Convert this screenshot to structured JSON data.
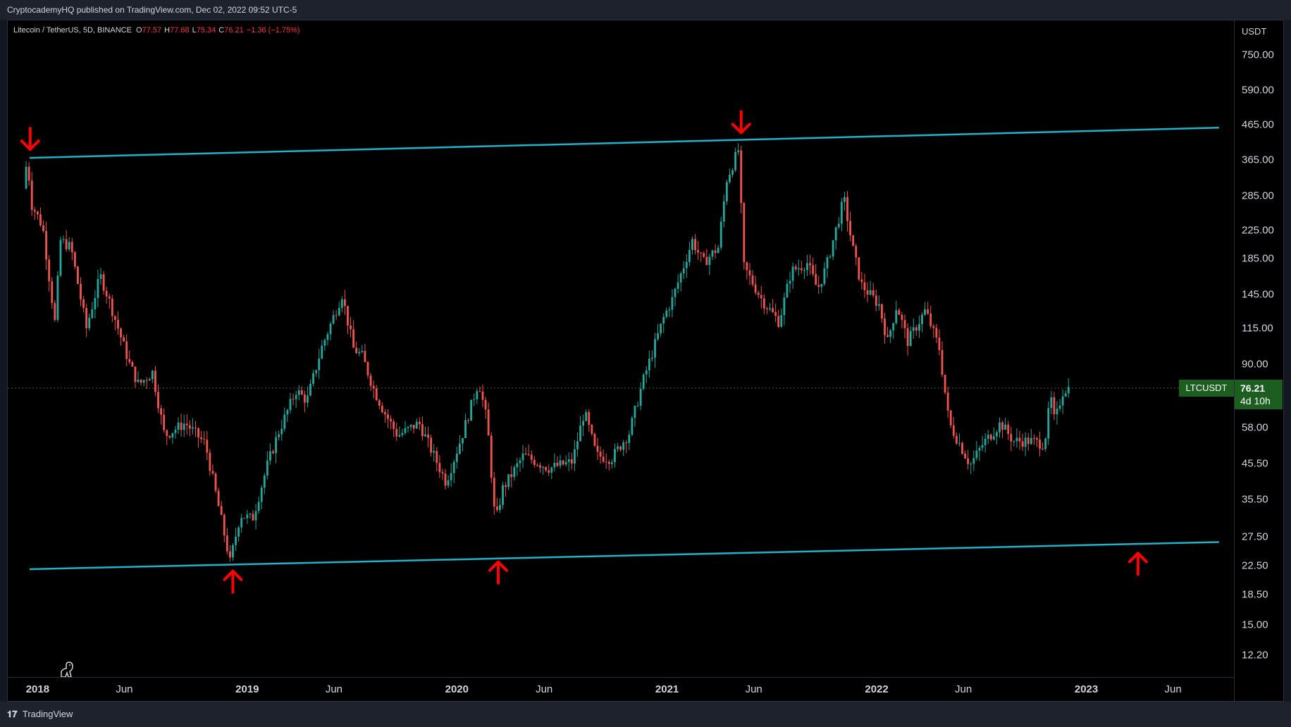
{
  "header": {
    "publisher": "CryptocademyHQ published on TradingView.com, Dec 02, 2022 09:52 UTC-5"
  },
  "legend": {
    "symbol": "Litecoin / TetherUS, 5D, BINANCE",
    "o_label": "O",
    "o_value": "77.57",
    "h_label": "H",
    "h_value": "77.68",
    "l_label": "L",
    "l_value": "75.34",
    "c_label": "C",
    "c_value": "76.21",
    "change": "−1.36 (−1.75%)"
  },
  "price_axis": {
    "currency": "USDT"
  },
  "badges": {
    "symbol": "LTCUSDT",
    "last_price": "76.21",
    "countdown": "4d 10h"
  },
  "footer": {
    "brand": "TradingView"
  },
  "colors": {
    "up": "#26a69a",
    "down": "#ef5350",
    "trendline": "#22b1c7",
    "arrow": "#ff0000",
    "badge": "#1b5e20"
  },
  "chart_data": {
    "type": "candlestick",
    "title": "Litecoin / TetherUS, 5D, BINANCE",
    "scale": "log",
    "ylim": [
      10.5,
      950
    ],
    "xlim": [
      "2017-11-10",
      "2023-09-15"
    ],
    "y_ticks": [
      "750.00",
      "590.00",
      "465.00",
      "365.00",
      "285.00",
      "225.00",
      "185.00",
      "145.00",
      "115.00",
      "90.00",
      "58.00",
      "45.50",
      "35.50",
      "27.50",
      "22.50",
      "18.50",
      "15.00",
      "12.20"
    ],
    "x_ticks": [
      {
        "label": "2018",
        "date": "2018-01-01",
        "year": true
      },
      {
        "label": "Jun",
        "date": "2018-06-01",
        "year": false
      },
      {
        "label": "2019",
        "date": "2019-01-01",
        "year": true
      },
      {
        "label": "Jun",
        "date": "2019-06-01",
        "year": false
      },
      {
        "label": "2020",
        "date": "2020-01-01",
        "year": true
      },
      {
        "label": "Jun",
        "date": "2020-06-01",
        "year": false
      },
      {
        "label": "2021",
        "date": "2021-01-01",
        "year": true
      },
      {
        "label": "Jun",
        "date": "2021-06-01",
        "year": false
      },
      {
        "label": "2022",
        "date": "2022-01-01",
        "year": true
      },
      {
        "label": "Jun",
        "date": "2022-06-01",
        "year": false
      },
      {
        "label": "2023",
        "date": "2023-01-01",
        "year": true
      },
      {
        "label": "Jun",
        "date": "2023-06-01",
        "year": false
      }
    ],
    "price_anchors": [
      [
        "2017-12-12",
        300
      ],
      [
        "2017-12-19",
        370
      ],
      [
        "2017-12-26",
        270
      ],
      [
        "2018-01-05",
        250
      ],
      [
        "2018-01-15",
        230
      ],
      [
        "2018-02-05",
        120
      ],
      [
        "2018-02-15",
        210
      ],
      [
        "2018-03-05",
        200
      ],
      [
        "2018-04-01",
        115
      ],
      [
        "2018-04-25",
        165
      ],
      [
        "2018-05-10",
        140
      ],
      [
        "2018-06-15",
        90
      ],
      [
        "2018-07-01",
        78
      ],
      [
        "2018-07-25",
        85
      ],
      [
        "2018-08-15",
        55
      ],
      [
        "2018-09-20",
        60
      ],
      [
        "2018-10-25",
        52
      ],
      [
        "2018-11-20",
        32
      ],
      [
        "2018-12-07",
        23.1
      ],
      [
        "2018-12-25",
        32
      ],
      [
        "2019-01-15",
        31
      ],
      [
        "2019-02-10",
        45
      ],
      [
        "2019-03-01",
        56
      ],
      [
        "2019-04-01",
        75
      ],
      [
        "2019-04-20",
        70
      ],
      [
        "2019-05-15",
        100
      ],
      [
        "2019-06-20",
        145
      ],
      [
        "2019-07-10",
        100
      ],
      [
        "2019-07-25",
        95
      ],
      [
        "2019-08-15",
        75
      ],
      [
        "2019-09-01",
        65
      ],
      [
        "2019-09-25",
        55
      ],
      [
        "2019-11-01",
        60
      ],
      [
        "2019-12-18",
        40
      ],
      [
        "2020-01-15",
        55
      ],
      [
        "2020-02-13",
        80
      ],
      [
        "2020-02-28",
        60
      ],
      [
        "2020-03-13",
        30
      ],
      [
        "2020-03-25",
        38
      ],
      [
        "2020-05-01",
        48
      ],
      [
        "2020-06-15",
        44
      ],
      [
        "2020-07-25",
        46
      ],
      [
        "2020-08-15",
        65
      ],
      [
        "2020-09-05",
        48
      ],
      [
        "2020-10-01",
        47
      ],
      [
        "2020-11-01",
        56
      ],
      [
        "2020-11-25",
        80
      ],
      [
        "2021-01-01",
        125
      ],
      [
        "2021-01-15",
        140
      ],
      [
        "2021-02-19",
        210
      ],
      [
        "2021-03-10",
        180
      ],
      [
        "2021-04-05",
        200
      ],
      [
        "2021-04-20",
        320
      ],
      [
        "2021-05-10",
        390
      ],
      [
        "2021-05-20",
        175
      ],
      [
        "2021-06-20",
        140
      ],
      [
        "2021-07-20",
        120
      ],
      [
        "2021-08-10",
        170
      ],
      [
        "2021-09-07",
        180
      ],
      [
        "2021-09-25",
        150
      ],
      [
        "2021-10-10",
        175
      ],
      [
        "2021-11-10",
        280
      ],
      [
        "2021-11-25",
        200
      ],
      [
        "2021-12-10",
        155
      ],
      [
        "2022-01-10",
        135
      ],
      [
        "2022-01-25",
        105
      ],
      [
        "2022-02-10",
        135
      ],
      [
        "2022-03-01",
        105
      ],
      [
        "2022-04-01",
        130
      ],
      [
        "2022-04-25",
        100
      ],
      [
        "2022-05-12",
        60
      ],
      [
        "2022-06-18",
        45
      ],
      [
        "2022-07-10",
        52
      ],
      [
        "2022-08-10",
        60
      ],
      [
        "2022-09-01",
        53
      ],
      [
        "2022-10-01",
        53
      ],
      [
        "2022-10-25",
        52
      ],
      [
        "2022-11-05",
        72
      ],
      [
        "2022-11-12",
        60
      ],
      [
        "2022-11-25",
        74
      ],
      [
        "2022-12-02",
        76.21
      ]
    ],
    "trendlines": [
      {
        "name": "upper",
        "from": [
          "2017-12-18",
          370
        ],
        "to": [
          "2023-08-20",
          455
        ]
      },
      {
        "name": "lower",
        "from": [
          "2017-12-18",
          22
        ],
        "to": [
          "2023-08-20",
          26.5
        ]
      }
    ],
    "arrows": [
      {
        "dir": "down",
        "date": "2017-12-19",
        "price": 370
      },
      {
        "dir": "down",
        "date": "2021-05-10",
        "price": 415
      },
      {
        "dir": "up",
        "date": "2018-12-07",
        "price": 23
      },
      {
        "dir": "up",
        "date": "2020-03-13",
        "price": 24.5
      },
      {
        "dir": "up",
        "date": "2023-04-01",
        "price": 26
      }
    ],
    "last_price": 76.21
  }
}
